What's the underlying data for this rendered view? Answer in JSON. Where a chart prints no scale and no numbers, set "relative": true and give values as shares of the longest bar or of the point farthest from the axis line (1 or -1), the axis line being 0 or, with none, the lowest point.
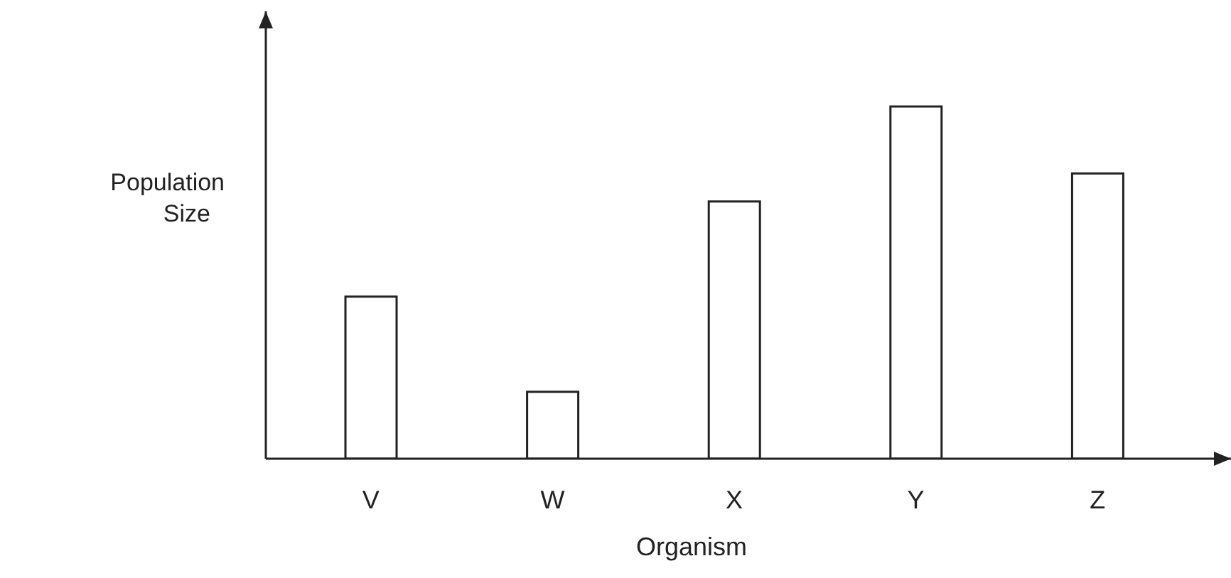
{
  "chart_data": {
    "type": "bar",
    "xlabel": "Organism",
    "ylabel": "Population Size",
    "categories": [
      "V",
      "W",
      "X",
      "Y",
      "Z"
    ],
    "values": [
      0.46,
      0.19,
      0.73,
      1,
      0.81
    ],
    "color": "#ffffff",
    "relative": true
  }
}
